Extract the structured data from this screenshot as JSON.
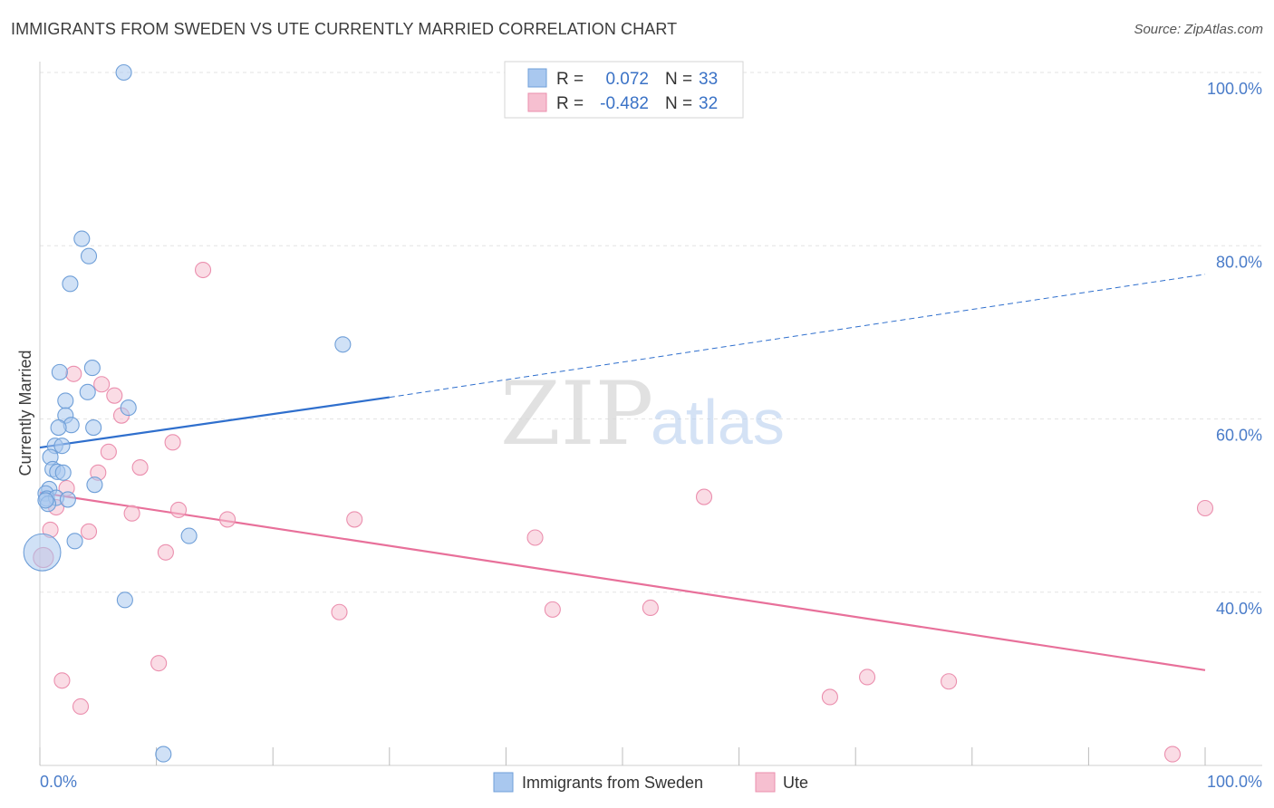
{
  "title": "IMMIGRANTS FROM SWEDEN VS UTE CURRENTLY MARRIED CORRELATION CHART",
  "source": "Source: ZipAtlas.com",
  "watermark": {
    "zip": "ZIP",
    "atlas": "atlas"
  },
  "colors": {
    "blue_fill": "#a9c8ef",
    "blue_stroke": "#6f9fd8",
    "blue_line": "#2f6fcd",
    "pink_fill": "#f6bfd0",
    "pink_stroke": "#eb8fae",
    "pink_line": "#e8709a",
    "grid": "#e3e3e3",
    "tick_label": "#4a7cc9"
  },
  "legend": {
    "rows": [
      {
        "r_label": "R =",
        "r_value": "0.072",
        "n_label": "N =",
        "n_value": "33"
      },
      {
        "r_label": "R =",
        "r_value": "-0.482",
        "n_label": "N =",
        "n_value": "32"
      }
    ]
  },
  "chart_data": {
    "type": "scatter",
    "title": "IMMIGRANTS FROM SWEDEN VS UTE CURRENTLY MARRIED CORRELATION CHART",
    "xlabel": "",
    "ylabel": "Currently Married",
    "xlim": [
      0,
      100
    ],
    "ylim": [
      20,
      100
    ],
    "x_tick_labels": [
      "0.0%",
      "100.0%"
    ],
    "y_ticks": [
      40,
      60,
      80,
      100
    ],
    "y_tick_labels": [
      "40.0%",
      "60.0%",
      "80.0%",
      "100.0%"
    ],
    "grid": true,
    "series": [
      {
        "name": "Immigrants from Sweden",
        "color": "#a9c8ef",
        "r": 0.072,
        "n": 33,
        "trend": {
          "x0": 0,
          "y0": 56.7,
          "x1": 30,
          "y1": 62.5,
          "dashed_to_x": 100,
          "dashed_to_y": 76.7
        },
        "points": [
          {
            "x": 7.2,
            "y": 100.0,
            "s": 1
          },
          {
            "x": 3.6,
            "y": 80.8,
            "s": 1
          },
          {
            "x": 4.2,
            "y": 78.8,
            "s": 1
          },
          {
            "x": 2.6,
            "y": 75.6,
            "s": 1
          },
          {
            "x": 26.0,
            "y": 68.6,
            "s": 1
          },
          {
            "x": 1.7,
            "y": 65.4,
            "s": 1
          },
          {
            "x": 4.5,
            "y": 65.9,
            "s": 1
          },
          {
            "x": 4.1,
            "y": 63.1,
            "s": 1
          },
          {
            "x": 2.2,
            "y": 62.1,
            "s": 1
          },
          {
            "x": 7.6,
            "y": 61.3,
            "s": 1
          },
          {
            "x": 2.2,
            "y": 60.4,
            "s": 1
          },
          {
            "x": 2.7,
            "y": 59.3,
            "s": 1
          },
          {
            "x": 1.6,
            "y": 59.0,
            "s": 1
          },
          {
            "x": 4.6,
            "y": 59.0,
            "s": 1
          },
          {
            "x": 1.3,
            "y": 56.9,
            "s": 1
          },
          {
            "x": 1.9,
            "y": 56.9,
            "s": 1
          },
          {
            "x": 0.9,
            "y": 55.6,
            "s": 1
          },
          {
            "x": 1.1,
            "y": 54.2,
            "s": 1
          },
          {
            "x": 1.5,
            "y": 53.9,
            "s": 1
          },
          {
            "x": 2.0,
            "y": 53.8,
            "s": 1
          },
          {
            "x": 4.7,
            "y": 52.4,
            "s": 1
          },
          {
            "x": 0.8,
            "y": 51.9,
            "s": 1
          },
          {
            "x": 0.5,
            "y": 51.4,
            "s": 1
          },
          {
            "x": 0.6,
            "y": 50.8,
            "s": 1
          },
          {
            "x": 1.4,
            "y": 50.9,
            "s": 1
          },
          {
            "x": 2.4,
            "y": 50.7,
            "s": 1
          },
          {
            "x": 0.7,
            "y": 50.2,
            "s": 1
          },
          {
            "x": 0.5,
            "y": 50.6,
            "s": 1
          },
          {
            "x": 12.8,
            "y": 46.5,
            "s": 1
          },
          {
            "x": 3.0,
            "y": 45.9,
            "s": 1
          },
          {
            "x": 0.2,
            "y": 44.6,
            "s": 2.4
          },
          {
            "x": 7.3,
            "y": 39.1,
            "s": 1
          },
          {
            "x": 10.6,
            "y": 21.3,
            "s": 1
          }
        ]
      },
      {
        "name": "Ute",
        "color": "#f6bfd0",
        "r": -0.482,
        "n": 32,
        "trend": {
          "x0": 0,
          "y0": 51.5,
          "x1": 100,
          "y1": 31.0
        },
        "points": [
          {
            "x": 14.0,
            "y": 77.2,
            "s": 1
          },
          {
            "x": 2.9,
            "y": 65.2,
            "s": 1
          },
          {
            "x": 5.3,
            "y": 64.0,
            "s": 1
          },
          {
            "x": 6.4,
            "y": 62.7,
            "s": 1
          },
          {
            "x": 7.0,
            "y": 60.4,
            "s": 1
          },
          {
            "x": 11.4,
            "y": 57.3,
            "s": 1
          },
          {
            "x": 5.9,
            "y": 56.2,
            "s": 1
          },
          {
            "x": 8.6,
            "y": 54.4,
            "s": 1
          },
          {
            "x": 5.0,
            "y": 53.8,
            "s": 1
          },
          {
            "x": 2.3,
            "y": 52.0,
            "s": 1
          },
          {
            "x": 57.0,
            "y": 51.0,
            "s": 1
          },
          {
            "x": 1.4,
            "y": 49.8,
            "s": 1
          },
          {
            "x": 11.9,
            "y": 49.5,
            "s": 1
          },
          {
            "x": 7.9,
            "y": 49.1,
            "s": 1
          },
          {
            "x": 100.0,
            "y": 49.7,
            "s": 1
          },
          {
            "x": 16.1,
            "y": 48.4,
            "s": 1
          },
          {
            "x": 27.0,
            "y": 48.4,
            "s": 1
          },
          {
            "x": 0.9,
            "y": 47.2,
            "s": 1
          },
          {
            "x": 4.2,
            "y": 47.0,
            "s": 1
          },
          {
            "x": 42.5,
            "y": 46.3,
            "s": 1
          },
          {
            "x": 10.8,
            "y": 44.6,
            "s": 1
          },
          {
            "x": 0.3,
            "y": 44.0,
            "s": 1.3
          },
          {
            "x": 25.7,
            "y": 37.7,
            "s": 1
          },
          {
            "x": 44.0,
            "y": 38.0,
            "s": 1
          },
          {
            "x": 52.4,
            "y": 38.2,
            "s": 1
          },
          {
            "x": 10.2,
            "y": 31.8,
            "s": 1
          },
          {
            "x": 1.9,
            "y": 29.8,
            "s": 1
          },
          {
            "x": 71.0,
            "y": 30.2,
            "s": 1
          },
          {
            "x": 78.0,
            "y": 29.7,
            "s": 1
          },
          {
            "x": 67.8,
            "y": 27.9,
            "s": 1
          },
          {
            "x": 3.5,
            "y": 26.8,
            "s": 1
          },
          {
            "x": 97.2,
            "y": 21.3,
            "s": 1
          }
        ]
      }
    ]
  }
}
